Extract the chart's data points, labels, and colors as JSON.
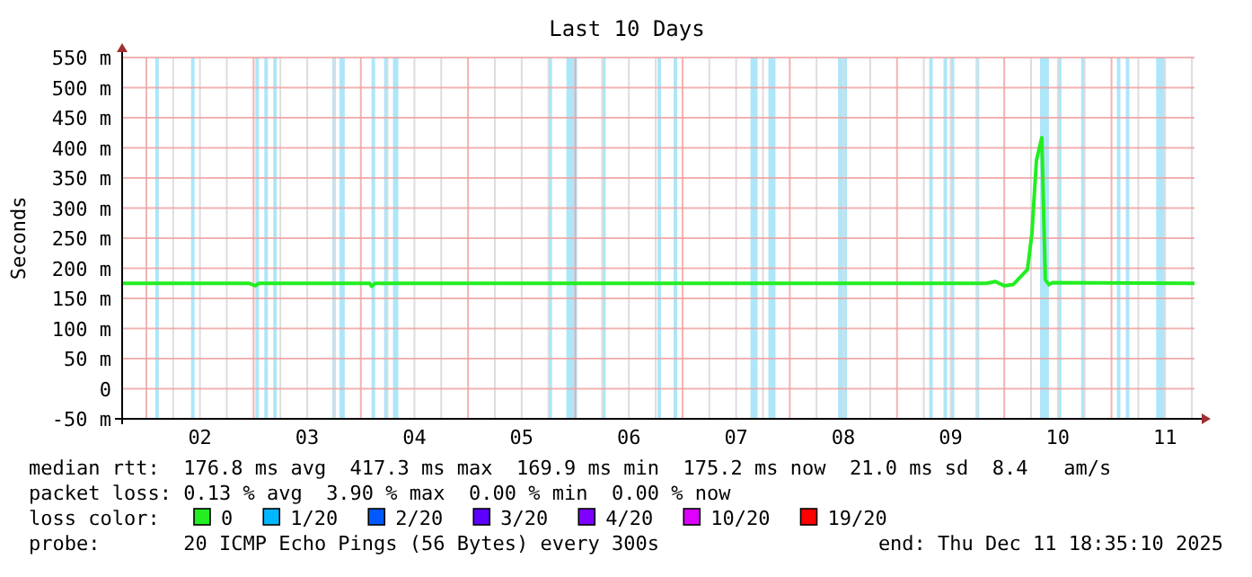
{
  "chart_data": {
    "type": "line",
    "title": "Last 10 Days",
    "ylabel": "Seconds",
    "xlim": [
      "2025-12-01T18:35",
      "2025-12-11T18:35"
    ],
    "xticks": [
      {
        "value": "2025-12-02T12:00",
        "label": "02"
      },
      {
        "value": "2025-12-03T12:00",
        "label": "03"
      },
      {
        "value": "2025-12-04T12:00",
        "label": "04"
      },
      {
        "value": "2025-12-05T12:00",
        "label": "05"
      },
      {
        "value": "2025-12-06T12:00",
        "label": "06"
      },
      {
        "value": "2025-12-07T12:00",
        "label": "07"
      },
      {
        "value": "2025-12-08T12:00",
        "label": "08"
      },
      {
        "value": "2025-12-09T12:00",
        "label": "09"
      },
      {
        "value": "2025-12-10T12:00",
        "label": "10"
      },
      {
        "value": "2025-12-11T12:00",
        "label": "11"
      }
    ],
    "ylim": [
      -50,
      550
    ],
    "yticks": [
      {
        "value": -50,
        "label": "-50 m"
      },
      {
        "value": 0,
        "label": "0"
      },
      {
        "value": 50,
        "label": "50 m"
      },
      {
        "value": 100,
        "label": "100 m"
      },
      {
        "value": 150,
        "label": "150 m"
      },
      {
        "value": 200,
        "label": "200 m"
      },
      {
        "value": 250,
        "label": "250 m"
      },
      {
        "value": 300,
        "label": "300 m"
      },
      {
        "value": 350,
        "label": "350 m"
      },
      {
        "value": 400,
        "label": "400 m"
      },
      {
        "value": 450,
        "label": "450 m"
      },
      {
        "value": 500,
        "label": "500 m"
      },
      {
        "value": 550,
        "label": "550 m"
      }
    ],
    "grid": true,
    "legend": "bottom",
    "x": [
      "2025-12-01T18:35",
      "2025-12-02T23:00",
      "2025-12-03T00:24",
      "2025-12-03T01:12",
      "2025-12-04T02:00",
      "2025-12-04T02:24",
      "2025-12-04T03:12",
      "2025-12-09T20:00",
      "2025-12-09T22:00",
      "2025-12-10T00:00",
      "2025-12-10T02:00",
      "2025-12-10T05:12",
      "2025-12-10T06:12",
      "2025-12-10T07:12",
      "2025-12-10T08:24",
      "2025-12-10T09:12",
      "2025-12-10T10:00",
      "2025-12-10T10:48",
      "2025-12-11T18:35"
    ],
    "series": [
      {
        "name": "0",
        "color": "#22ee22",
        "values": [
          175,
          175,
          171,
          175,
          175,
          170,
          175,
          175,
          178,
          171,
          173,
          198,
          258,
          379,
          417,
          181,
          173,
          176,
          175
        ]
      },
      {
        "name": "1/20",
        "color": "#00b8ff",
        "values": [
          null,
          null,
          null,
          null,
          null,
          null,
          null,
          null,
          null,
          null,
          null,
          null,
          null,
          null,
          null,
          null,
          null,
          null,
          null
        ]
      },
      {
        "name": "2/20",
        "color": "#0059ff",
        "values": [
          null,
          null,
          null,
          null,
          null,
          null,
          null,
          null,
          null,
          null,
          null,
          null,
          null,
          null,
          null,
          null,
          null,
          null,
          null
        ]
      },
      {
        "name": "3/20",
        "color": "#5e00ff",
        "values": [
          null,
          null,
          null,
          null,
          null,
          null,
          null,
          null,
          null,
          null,
          null,
          null,
          null,
          null,
          null,
          null,
          null,
          null,
          null
        ]
      },
      {
        "name": "4/20",
        "color": "#7e00ff",
        "values": [
          null,
          null,
          null,
          null,
          null,
          null,
          null,
          null,
          null,
          null,
          null,
          null,
          null,
          null,
          null,
          null,
          null,
          null,
          null
        ]
      },
      {
        "name": "10/20",
        "color": "#dd00ff",
        "values": [
          null,
          null,
          null,
          null,
          null,
          null,
          null,
          null,
          null,
          null,
          null,
          null,
          null,
          null,
          null,
          null,
          null,
          null,
          null
        ]
      },
      {
        "name": "19/20",
        "color": "#ff0000",
        "values": [
          null,
          null,
          null,
          null,
          null,
          null,
          null,
          null,
          null,
          null,
          null,
          null,
          null,
          null,
          null,
          null,
          null,
          null,
          null
        ]
      }
    ],
    "bands": [
      {
        "axis": "x",
        "from": "2025-12-02T02:00",
        "to": "2025-12-02T02:48",
        "color": "#aee6f9"
      },
      {
        "axis": "x",
        "from": "2025-12-02T10:00",
        "to": "2025-12-02T10:48",
        "color": "#aee6f9"
      },
      {
        "axis": "x",
        "from": "2025-12-03T00:24",
        "to": "2025-12-03T01:12",
        "color": "#aee6f9"
      },
      {
        "axis": "x",
        "from": "2025-12-03T02:24",
        "to": "2025-12-03T03:12",
        "color": "#aee6f9"
      },
      {
        "axis": "x",
        "from": "2025-12-03T04:24",
        "to": "2025-12-03T05:12",
        "color": "#aee6f9"
      },
      {
        "axis": "x",
        "from": "2025-12-03T17:36",
        "to": "2025-12-03T18:24",
        "color": "#aee6f9"
      },
      {
        "axis": "x",
        "from": "2025-12-03T19:12",
        "to": "2025-12-03T20:24",
        "color": "#aee6f9"
      },
      {
        "axis": "x",
        "from": "2025-12-04T02:24",
        "to": "2025-12-04T03:12",
        "color": "#aee6f9"
      },
      {
        "axis": "x",
        "from": "2025-12-04T05:12",
        "to": "2025-12-04T06:00",
        "color": "#aee6f9"
      },
      {
        "axis": "x",
        "from": "2025-12-04T07:12",
        "to": "2025-12-04T08:24",
        "color": "#aee6f9"
      },
      {
        "axis": "x",
        "from": "2025-12-05T18:00",
        "to": "2025-12-05T18:48",
        "color": "#aee6f9"
      },
      {
        "axis": "x",
        "from": "2025-12-05T22:00",
        "to": "2025-12-06T00:24",
        "color": "#aee6f9"
      },
      {
        "axis": "x",
        "from": "2025-12-06T06:00",
        "to": "2025-12-06T06:48",
        "color": "#aee6f9"
      },
      {
        "axis": "x",
        "from": "2025-12-06T18:24",
        "to": "2025-12-06T19:12",
        "color": "#aee6f9"
      },
      {
        "axis": "x",
        "from": "2025-12-06T22:00",
        "to": "2025-12-06T22:48",
        "color": "#aee6f9"
      },
      {
        "axis": "x",
        "from": "2025-12-07T15:12",
        "to": "2025-12-07T16:48",
        "color": "#aee6f9"
      },
      {
        "axis": "x",
        "from": "2025-12-07T19:12",
        "to": "2025-12-07T20:48",
        "color": "#aee6f9"
      },
      {
        "axis": "x",
        "from": "2025-12-08T10:48",
        "to": "2025-12-08T12:48",
        "color": "#aee6f9"
      },
      {
        "axis": "x",
        "from": "2025-12-09T07:12",
        "to": "2025-12-09T08:00",
        "color": "#aee6f9"
      },
      {
        "axis": "x",
        "from": "2025-12-09T10:24",
        "to": "2025-12-09T11:12",
        "color": "#aee6f9"
      },
      {
        "axis": "x",
        "from": "2025-12-09T12:00",
        "to": "2025-12-09T12:48",
        "color": "#aee6f9"
      },
      {
        "axis": "x",
        "from": "2025-12-09T17:36",
        "to": "2025-12-09T18:24",
        "color": "#aee6f9"
      },
      {
        "axis": "x",
        "from": "2025-12-10T08:00",
        "to": "2025-12-10T10:00",
        "color": "#aee6f9"
      },
      {
        "axis": "x",
        "from": "2025-12-10T12:00",
        "to": "2025-12-10T12:48",
        "color": "#aee6f9"
      },
      {
        "axis": "x",
        "from": "2025-12-10T17:12",
        "to": "2025-12-10T18:00",
        "color": "#aee6f9"
      },
      {
        "axis": "x",
        "from": "2025-12-11T01:12",
        "to": "2025-12-11T02:00",
        "color": "#aee6f9"
      },
      {
        "axis": "x",
        "from": "2025-12-11T03:12",
        "to": "2025-12-11T04:00",
        "color": "#aee6f9"
      },
      {
        "axis": "x",
        "from": "2025-12-11T10:00",
        "to": "2025-12-11T12:00",
        "color": "#aee6f9"
      }
    ],
    "annotations": [
      "median rtt:  176.8 ms avg  417.3 ms max  169.9 ms min  175.2 ms now  21.0 ms sd  8.4   am/s",
      "packet loss: 0.13 % avg  3.90 % max  0.00 % min  0.00 % now",
      "loss color:",
      "probe:       20 ICMP Echo Pings (56 Bytes) every 300s",
      "end: Thu Dec 11 18:35:10 2025"
    ]
  }
}
